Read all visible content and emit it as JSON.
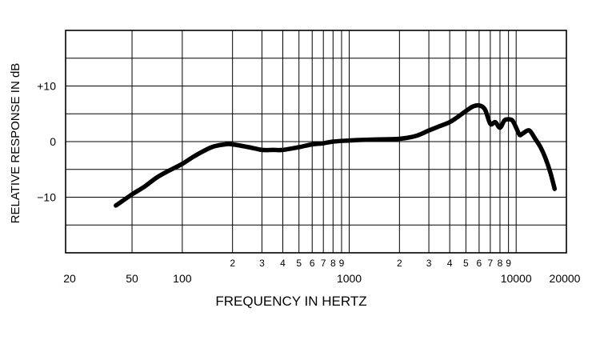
{
  "chart_data": {
    "type": "line",
    "xlabel": "FREQUENCY IN HERTZ",
    "ylabel": "RELATIVE RESPONSE IN dB",
    "x_scale": "log",
    "xlim": [
      20,
      20000
    ],
    "ylim": [
      -20,
      20
    ],
    "grid": true,
    "x_major_ticks": [
      {
        "value": 20,
        "label": "20"
      },
      {
        "value": 50,
        "label": "50"
      },
      {
        "value": 100,
        "label": "100"
      },
      {
        "value": 1000,
        "label": "1000"
      },
      {
        "value": 10000,
        "label": "10000"
      },
      {
        "value": 20000,
        "label": "20000"
      }
    ],
    "x_minor_ticks": [
      {
        "value": 200,
        "label": "2"
      },
      {
        "value": 300,
        "label": "3"
      },
      {
        "value": 400,
        "label": "4"
      },
      {
        "value": 500,
        "label": "5"
      },
      {
        "value": 600,
        "label": "6"
      },
      {
        "value": 700,
        "label": "7"
      },
      {
        "value": 800,
        "label": "8"
      },
      {
        "value": 900,
        "label": "9"
      },
      {
        "value": 2000,
        "label": "2"
      },
      {
        "value": 3000,
        "label": "3"
      },
      {
        "value": 4000,
        "label": "4"
      },
      {
        "value": 5000,
        "label": "5"
      },
      {
        "value": 6000,
        "label": "6"
      },
      {
        "value": 7000,
        "label": "7"
      },
      {
        "value": 8000,
        "label": "8"
      },
      {
        "value": 9000,
        "label": "9"
      }
    ],
    "y_ticks": [
      {
        "value": 10,
        "label": "+10"
      },
      {
        "value": 0,
        "label": "0"
      },
      {
        "value": -10,
        "label": "−10"
      }
    ],
    "y_gridlines": [
      -15,
      -10,
      -5,
      0,
      5,
      10,
      15
    ],
    "x_gridlines": [
      50,
      100,
      200,
      300,
      400,
      500,
      600,
      700,
      800,
      900,
      1000,
      2000,
      3000,
      4000,
      5000,
      6000,
      7000,
      8000,
      9000,
      10000
    ],
    "series": [
      {
        "color": "#000000",
        "x": [
          40,
          50,
          60,
          70,
          80,
          100,
          120,
          150,
          180,
          200,
          250,
          300,
          350,
          400,
          500,
          600,
          700,
          800,
          1000,
          1200,
          1500,
          2000,
          2500,
          3000,
          3500,
          4000,
          4500,
          5000,
          5500,
          6000,
          6500,
          7000,
          7500,
          8000,
          8500,
          9000,
          9500,
          10000,
          10500,
          11000,
          12000,
          13000,
          14000,
          15000,
          16000,
          17000
        ],
        "y": [
          -11.5,
          -9.5,
          -8,
          -6.5,
          -5.5,
          -4,
          -2.5,
          -1,
          -0.5,
          -0.5,
          -1,
          -1.5,
          -1.5,
          -1.5,
          -1,
          -0.5,
          -0.3,
          0,
          0.2,
          0.3,
          0.4,
          0.5,
          1,
          2,
          2.8,
          3.5,
          4.5,
          5.5,
          6.3,
          6.5,
          5.8,
          3.2,
          3.5,
          2.5,
          3.8,
          4,
          3.8,
          2.5,
          1.2,
          1.5,
          2,
          0.5,
          -1,
          -3,
          -5.5,
          -8.5
        ]
      }
    ]
  }
}
